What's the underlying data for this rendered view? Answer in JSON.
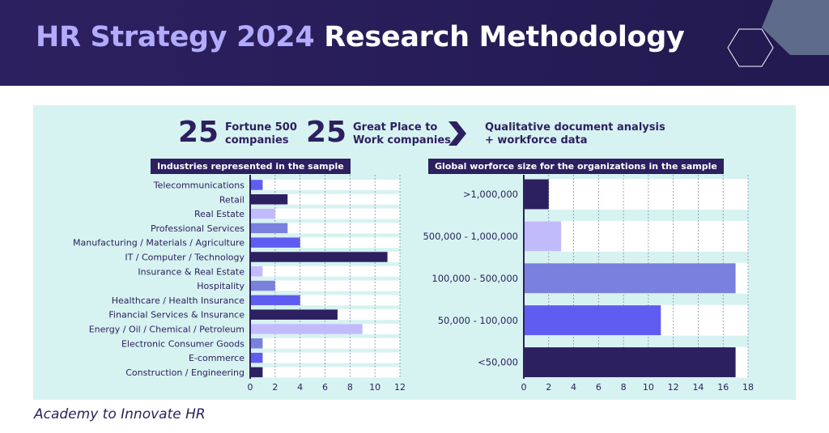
{
  "header": {
    "title_accent": "HR Strategy 2024",
    "title_rest": "Research Methodology"
  },
  "stats": [
    {
      "number": "25",
      "line1": "Fortune 500",
      "line2": "companies"
    },
    {
      "number": "25",
      "line1": "Great Place to",
      "line2": "Work companies"
    },
    {
      "line1": "Qualitative document analysis",
      "line2": "+  workforce data"
    }
  ],
  "colors": {
    "header_bg": "#2d2060",
    "panel_bg": "#d6f3f1",
    "accent_title": "#b2abff",
    "bar_dark": "#2d2060",
    "bar_blue": "#5f5cf1",
    "bar_lilac": "#c2bbfb",
    "bar_periwinkle": "#7a80de"
  },
  "chart_data": [
    {
      "type": "bar",
      "orientation": "horizontal",
      "title": "Industries represented in the sample",
      "categories": [
        "Telecommunications",
        "Retail",
        "Real Estate",
        "Professional Services",
        "Manufacturing / Materials / Agriculture",
        "IT / Computer / Technology",
        "Insurance & Real Estate",
        "Hospitality",
        "Healthcare / Health Insurance",
        "Financial Services & Insurance",
        "Energy / Oil / Chemical / Petroleum",
        "Electronic Consumer Goods",
        "E-commerce",
        "Construction / Engineering"
      ],
      "values": [
        1,
        3,
        2,
        3,
        4,
        11,
        1,
        2,
        4,
        7,
        9,
        1,
        1,
        1
      ],
      "bar_colors": [
        "#5f5cf1",
        "#2d2060",
        "#c2bbfb",
        "#7a80de",
        "#5f5cf1",
        "#2d2060",
        "#c2bbfb",
        "#7a80de",
        "#5f5cf1",
        "#2d2060",
        "#c2bbfb",
        "#7a80de",
        "#5f5cf1",
        "#2d2060"
      ],
      "xlim": [
        0,
        12
      ],
      "xticks": [
        0,
        2,
        4,
        6,
        8,
        10,
        12
      ],
      "grid": true
    },
    {
      "type": "bar",
      "orientation": "horizontal",
      "title": "Global worforce size for the organizations in the sample",
      "categories": [
        ">1,000,000",
        "500,000 - 1,000,000",
        "100,000 - 500,000",
        "50,000 - 100,000",
        "<50,000"
      ],
      "values": [
        2,
        3,
        17,
        11,
        17
      ],
      "bar_colors": [
        "#2d2060",
        "#c2bbfb",
        "#7a80de",
        "#5f5cf1",
        "#2d2060"
      ],
      "xlim": [
        0,
        18
      ],
      "xticks": [
        0,
        2,
        4,
        6,
        8,
        10,
        12,
        14,
        16,
        18
      ],
      "grid": true
    }
  ],
  "footer": {
    "text": "Academy to Innovate HR"
  }
}
